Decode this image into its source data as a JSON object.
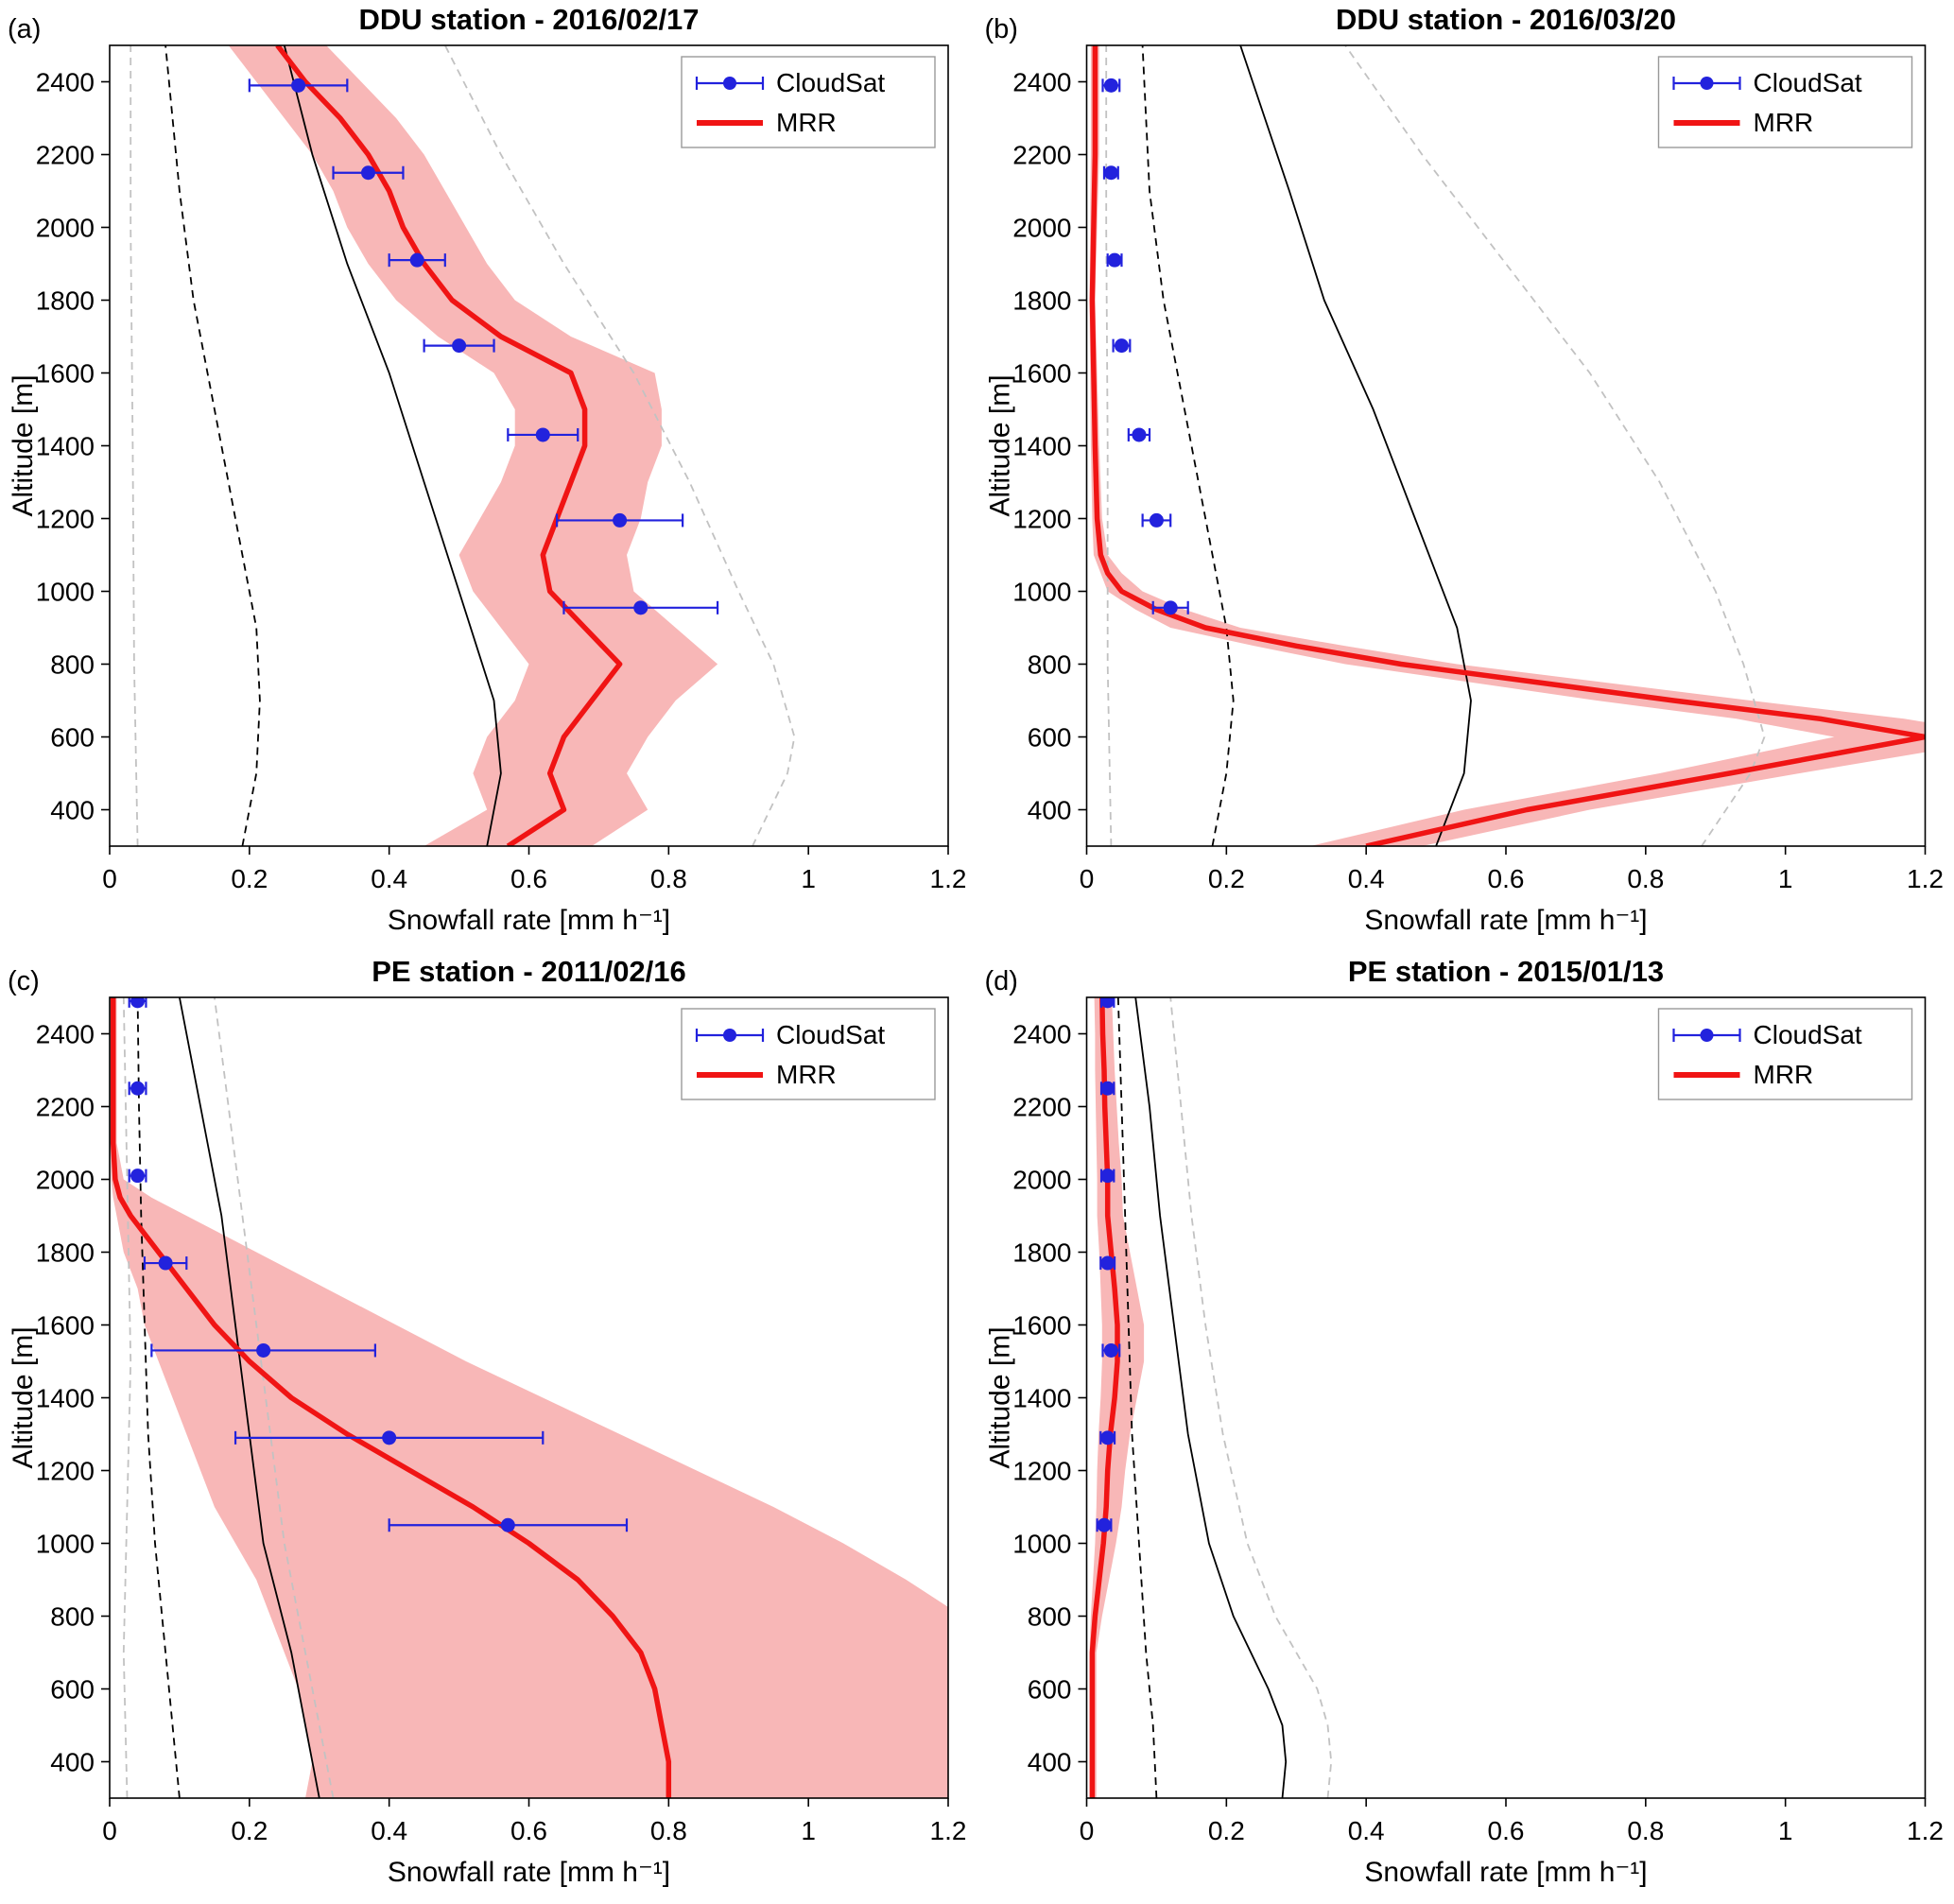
{
  "page": {
    "background": "#ffffff"
  },
  "colors": {
    "mrr_line": "#f01414",
    "mrr_band": "#f8b7b7",
    "cloudsat": "#2222dd",
    "aux_black": "#000000",
    "aux_gray": "#c2c2c2",
    "frame": "#000000",
    "legend_border": "#999999"
  },
  "legend": {
    "cloudsat_label": "CloudSat",
    "mrr_label": "MRR"
  },
  "chart_data": [
    {
      "type": "line",
      "panel_label": "(a)",
      "title": "DDU station - 2016/02/17",
      "xlabel": "Snowfall rate [mm h⁻¹]",
      "ylabel": "Altitude [m]",
      "xlim": [
        0,
        1.2
      ],
      "ylim": [
        300,
        2500
      ],
      "xticks": [
        0,
        0.2,
        0.4,
        0.6,
        0.8,
        1,
        1.2
      ],
      "xtick_labels": [
        "0",
        "0.2",
        "0.4",
        "0.6",
        "0.8",
        "1",
        "1.2"
      ],
      "yticks": [
        400,
        600,
        800,
        1000,
        1200,
        1400,
        1600,
        1800,
        2000,
        2200,
        2400
      ],
      "legend_position": "top-right",
      "mrr": {
        "altitude": [
          300,
          400,
          500,
          600,
          700,
          800,
          900,
          1000,
          1100,
          1200,
          1300,
          1400,
          1500,
          1600,
          1700,
          1800,
          1900,
          2000,
          2100,
          2200,
          2300,
          2400,
          2500
        ],
        "rate": [
          0.57,
          0.65,
          0.63,
          0.65,
          0.69,
          0.73,
          0.68,
          0.63,
          0.62,
          0.64,
          0.66,
          0.68,
          0.68,
          0.66,
          0.56,
          0.49,
          0.45,
          0.42,
          0.4,
          0.37,
          0.33,
          0.28,
          0.24
        ],
        "lower": [
          0.45,
          0.54,
          0.52,
          0.54,
          0.58,
          0.6,
          0.56,
          0.52,
          0.5,
          0.53,
          0.56,
          0.58,
          0.58,
          0.55,
          0.47,
          0.41,
          0.37,
          0.34,
          0.32,
          0.29,
          0.25,
          0.21,
          0.17
        ],
        "upper": [
          0.69,
          0.77,
          0.74,
          0.77,
          0.81,
          0.87,
          0.81,
          0.75,
          0.74,
          0.76,
          0.77,
          0.79,
          0.79,
          0.78,
          0.66,
          0.58,
          0.54,
          0.51,
          0.48,
          0.45,
          0.41,
          0.36,
          0.31
        ]
      },
      "cloudsat": {
        "altitude": [
          955,
          1195,
          1430,
          1675,
          1910,
          2150,
          2390
        ],
        "rate": [
          0.76,
          0.73,
          0.62,
          0.5,
          0.44,
          0.37,
          0.27
        ],
        "xerr": [
          0.11,
          0.09,
          0.05,
          0.05,
          0.04,
          0.05,
          0.07
        ]
      },
      "aux_lines": [
        {
          "name": "quantile-black-solid",
          "style": "black-solid",
          "altitude": [
            300,
            500,
            700,
            1000,
            1300,
            1600,
            1900,
            2200,
            2500
          ],
          "rate": [
            0.54,
            0.56,
            0.55,
            0.5,
            0.45,
            0.4,
            0.34,
            0.29,
            0.25
          ]
        },
        {
          "name": "quantile-black-dashed",
          "style": "black-dashed",
          "altitude": [
            300,
            500,
            700,
            900,
            1200,
            1500,
            1800,
            2100,
            2500
          ],
          "rate": [
            0.19,
            0.21,
            0.215,
            0.21,
            0.18,
            0.15,
            0.12,
            0.1,
            0.08
          ]
        },
        {
          "name": "quantile-gray-dashed-left",
          "style": "gray-dashed",
          "altitude": [
            300,
            800,
            1400,
            2000,
            2500
          ],
          "rate": [
            0.04,
            0.035,
            0.033,
            0.03,
            0.03
          ]
        },
        {
          "name": "quantile-gray-dashed-right",
          "style": "gray-dashed",
          "altitude": [
            300,
            500,
            600,
            800,
            1000,
            1300,
            1600,
            1900,
            2200,
            2500
          ],
          "rate": [
            0.92,
            0.97,
            0.98,
            0.95,
            0.9,
            0.83,
            0.75,
            0.65,
            0.56,
            0.48
          ]
        }
      ]
    },
    {
      "type": "line",
      "panel_label": "(b)",
      "title": "DDU station - 2016/03/20",
      "xlabel": "Snowfall rate [mm h⁻¹]",
      "ylabel": "Altitude [m]",
      "xlim": [
        0,
        1.2
      ],
      "ylim": [
        300,
        2500
      ],
      "xticks": [
        0,
        0.2,
        0.4,
        0.6,
        0.8,
        1,
        1.2
      ],
      "xtick_labels": [
        "0",
        "0.2",
        "0.4",
        "0.6",
        "0.8",
        "1",
        "1.2"
      ],
      "yticks": [
        400,
        600,
        800,
        1000,
        1200,
        1400,
        1600,
        1800,
        2000,
        2200,
        2400
      ],
      "legend_position": "top-right",
      "mrr": {
        "altitude": [
          300,
          400,
          500,
          600,
          650,
          700,
          800,
          850,
          900,
          950,
          1000,
          1050,
          1100,
          1200,
          1400,
          1600,
          1800,
          2000,
          2200,
          2400,
          2500
        ],
        "rate": [
          0.4,
          0.63,
          0.92,
          1.2,
          1.05,
          0.84,
          0.45,
          0.3,
          0.17,
          0.1,
          0.05,
          0.03,
          0.02,
          0.015,
          0.012,
          0.01,
          0.008,
          0.01,
          0.012,
          0.012,
          0.012
        ],
        "lower": [
          0.32,
          0.54,
          0.82,
          1.07,
          0.93,
          0.73,
          0.37,
          0.24,
          0.12,
          0.07,
          0.03,
          0.02,
          0.01,
          0.008,
          0.006,
          0.005,
          0.004,
          0.005,
          0.006,
          0.006,
          0.006
        ],
        "upper": [
          0.48,
          0.72,
          1.02,
          1.33,
          1.17,
          0.95,
          0.53,
          0.37,
          0.22,
          0.14,
          0.08,
          0.05,
          0.03,
          0.022,
          0.018,
          0.015,
          0.012,
          0.015,
          0.018,
          0.018,
          0.018
        ]
      },
      "cloudsat": {
        "altitude": [
          955,
          1195,
          1430,
          1675,
          1910,
          2150,
          2390
        ],
        "rate": [
          0.12,
          0.1,
          0.075,
          0.05,
          0.04,
          0.035,
          0.035
        ],
        "xerr": [
          0.025,
          0.02,
          0.015,
          0.012,
          0.01,
          0.01,
          0.012
        ]
      },
      "aux_lines": [
        {
          "name": "quantile-black-solid",
          "style": "black-solid",
          "altitude": [
            300,
            500,
            700,
            900,
            1200,
            1500,
            1800,
            2100,
            2500
          ],
          "rate": [
            0.5,
            0.54,
            0.55,
            0.53,
            0.47,
            0.41,
            0.34,
            0.29,
            0.22
          ]
        },
        {
          "name": "quantile-black-dashed",
          "style": "black-dashed",
          "altitude": [
            300,
            500,
            700,
            900,
            1200,
            1500,
            1800,
            2100,
            2500
          ],
          "rate": [
            0.18,
            0.2,
            0.21,
            0.2,
            0.17,
            0.14,
            0.11,
            0.09,
            0.08
          ]
        },
        {
          "name": "quantile-gray-dashed-left",
          "style": "gray-dashed",
          "altitude": [
            300,
            800,
            1400,
            2000,
            2500
          ],
          "rate": [
            0.035,
            0.03,
            0.03,
            0.028,
            0.028
          ]
        },
        {
          "name": "quantile-gray-dashed-right",
          "style": "gray-dashed",
          "altitude": [
            300,
            500,
            600,
            800,
            1000,
            1300,
            1600,
            1900,
            2200,
            2500
          ],
          "rate": [
            0.88,
            0.95,
            0.97,
            0.94,
            0.9,
            0.82,
            0.72,
            0.6,
            0.48,
            0.37
          ]
        }
      ]
    },
    {
      "type": "line",
      "panel_label": "(c)",
      "title": "PE station - 2011/02/16",
      "xlabel": "Snowfall rate [mm h⁻¹]",
      "ylabel": "Altitude [m]",
      "xlim": [
        0,
        1.2
      ],
      "ylim": [
        300,
        2500
      ],
      "xticks": [
        0,
        0.2,
        0.4,
        0.6,
        0.8,
        1,
        1.2
      ],
      "xtick_labels": [
        "0",
        "0.2",
        "0.4",
        "0.6",
        "0.8",
        "1",
        "1.2"
      ],
      "yticks": [
        400,
        600,
        800,
        1000,
        1200,
        1400,
        1600,
        1800,
        2000,
        2200,
        2400
      ],
      "legend_position": "top-right",
      "mrr": {
        "altitude": [
          300,
          400,
          500,
          600,
          700,
          800,
          900,
          1000,
          1100,
          1200,
          1300,
          1400,
          1500,
          1600,
          1700,
          1800,
          1900,
          1950,
          2000,
          2100,
          2200,
          2300,
          2400,
          2500
        ],
        "rate": [
          0.8,
          0.8,
          0.79,
          0.78,
          0.76,
          0.72,
          0.67,
          0.6,
          0.52,
          0.43,
          0.34,
          0.26,
          0.2,
          0.15,
          0.11,
          0.07,
          0.03,
          0.015,
          0.008,
          0.005,
          0.005,
          0.005,
          0.005,
          0.005
        ],
        "lower": [
          0.28,
          0.29,
          0.28,
          0.27,
          0.25,
          0.23,
          0.21,
          0.18,
          0.15,
          0.13,
          0.11,
          0.09,
          0.07,
          0.05,
          0.04,
          0.02,
          0.01,
          0.005,
          0.002,
          0.001,
          0.001,
          0.001,
          0.001,
          0.001
        ],
        "upper": [
          1.38,
          1.38,
          1.36,
          1.33,
          1.28,
          1.22,
          1.14,
          1.05,
          0.95,
          0.84,
          0.73,
          0.62,
          0.51,
          0.41,
          0.31,
          0.21,
          0.11,
          0.06,
          0.02,
          0.01,
          0.01,
          0.01,
          0.01,
          0.01
        ]
      },
      "cloudsat": {
        "altitude": [
          1050,
          1290,
          1530,
          1770,
          2010,
          2250,
          2490
        ],
        "rate": [
          0.57,
          0.4,
          0.22,
          0.08,
          0.04,
          0.04,
          0.04
        ],
        "xerr": [
          0.17,
          0.22,
          0.16,
          0.03,
          0.012,
          0.012,
          0.012
        ]
      },
      "aux_lines": [
        {
          "name": "quantile-black-solid",
          "style": "black-solid",
          "altitude": [
            300,
            500,
            700,
            1000,
            1300,
            1600,
            1900,
            2200,
            2500
          ],
          "rate": [
            0.3,
            0.28,
            0.26,
            0.22,
            0.2,
            0.18,
            0.16,
            0.13,
            0.1
          ]
        },
        {
          "name": "quantile-black-dashed",
          "style": "black-dashed",
          "altitude": [
            300,
            500,
            700,
            1000,
            1300,
            1600,
            1900,
            2200,
            2500
          ],
          "rate": [
            0.1,
            0.09,
            0.08,
            0.065,
            0.055,
            0.05,
            0.045,
            0.042,
            0.04
          ]
        },
        {
          "name": "quantile-gray-dashed-left",
          "style": "gray-dashed",
          "altitude": [
            300,
            700,
            1100,
            1500,
            2000,
            2500
          ],
          "rate": [
            0.025,
            0.02,
            0.025,
            0.03,
            0.025,
            0.02
          ]
        },
        {
          "name": "quantile-gray-dashed-right",
          "style": "gray-dashed",
          "altitude": [
            300,
            500,
            700,
            1000,
            1300,
            1600,
            1900,
            2200,
            2500
          ],
          "rate": [
            0.32,
            0.3,
            0.28,
            0.25,
            0.23,
            0.21,
            0.19,
            0.17,
            0.15
          ]
        }
      ]
    },
    {
      "type": "line",
      "panel_label": "(d)",
      "title": "PE station - 2015/01/13",
      "xlabel": "Snowfall rate [mm h⁻¹]",
      "ylabel": "Altitude [m]",
      "xlim": [
        0,
        1.2
      ],
      "ylim": [
        300,
        2500
      ],
      "xticks": [
        0,
        0.2,
        0.4,
        0.6,
        0.8,
        1,
        1.2
      ],
      "xtick_labels": [
        "0",
        "0.2",
        "0.4",
        "0.6",
        "0.8",
        "1",
        "1.2"
      ],
      "yticks": [
        400,
        600,
        800,
        1000,
        1200,
        1400,
        1600,
        1800,
        2000,
        2200,
        2400
      ],
      "legend_position": "top-right",
      "mrr": {
        "altitude": [
          300,
          500,
          700,
          800,
          900,
          1000,
          1100,
          1200,
          1300,
          1400,
          1500,
          1600,
          1700,
          1800,
          1900,
          2000,
          2100,
          2200,
          2300,
          2400,
          2500
        ],
        "rate": [
          0.008,
          0.008,
          0.008,
          0.012,
          0.018,
          0.024,
          0.028,
          0.03,
          0.034,
          0.04,
          0.044,
          0.044,
          0.04,
          0.035,
          0.03,
          0.03,
          0.028,
          0.026,
          0.025,
          0.023,
          0.022
        ],
        "lower": [
          0.004,
          0.004,
          0.004,
          0.006,
          0.009,
          0.012,
          0.014,
          0.015,
          0.017,
          0.02,
          0.022,
          0.022,
          0.02,
          0.018,
          0.015,
          0.015,
          0.014,
          0.013,
          0.012,
          0.012,
          0.011
        ],
        "upper": [
          0.014,
          0.014,
          0.014,
          0.022,
          0.032,
          0.042,
          0.05,
          0.055,
          0.062,
          0.072,
          0.082,
          0.082,
          0.072,
          0.062,
          0.052,
          0.05,
          0.046,
          0.043,
          0.04,
          0.038,
          0.036
        ]
      },
      "cloudsat": {
        "altitude": [
          1050,
          1290,
          1530,
          1770,
          2010,
          2250,
          2490
        ],
        "rate": [
          0.025,
          0.03,
          0.035,
          0.03,
          0.03,
          0.03,
          0.03
        ],
        "xerr": [
          0.01,
          0.01,
          0.012,
          0.01,
          0.009,
          0.009,
          0.009
        ]
      },
      "aux_lines": [
        {
          "name": "quantile-black-solid",
          "style": "black-solid",
          "altitude": [
            300,
            400,
            500,
            600,
            800,
            1000,
            1300,
            1600,
            1900,
            2200,
            2500
          ],
          "rate": [
            0.28,
            0.285,
            0.28,
            0.26,
            0.21,
            0.175,
            0.145,
            0.125,
            0.105,
            0.09,
            0.07
          ]
        },
        {
          "name": "quantile-black-dashed",
          "style": "black-dashed",
          "altitude": [
            300,
            500,
            700,
            1000,
            1300,
            1600,
            1900,
            2200,
            2500
          ],
          "rate": [
            0.1,
            0.095,
            0.085,
            0.075,
            0.065,
            0.06,
            0.055,
            0.05,
            0.045
          ]
        },
        {
          "name": "quantile-gray-dashed-right",
          "style": "gray-dashed",
          "altitude": [
            300,
            400,
            500,
            600,
            800,
            1000,
            1300,
            1600,
            1900,
            2200,
            2500
          ],
          "rate": [
            0.345,
            0.35,
            0.345,
            0.33,
            0.27,
            0.23,
            0.195,
            0.17,
            0.15,
            0.135,
            0.12
          ]
        }
      ]
    }
  ]
}
